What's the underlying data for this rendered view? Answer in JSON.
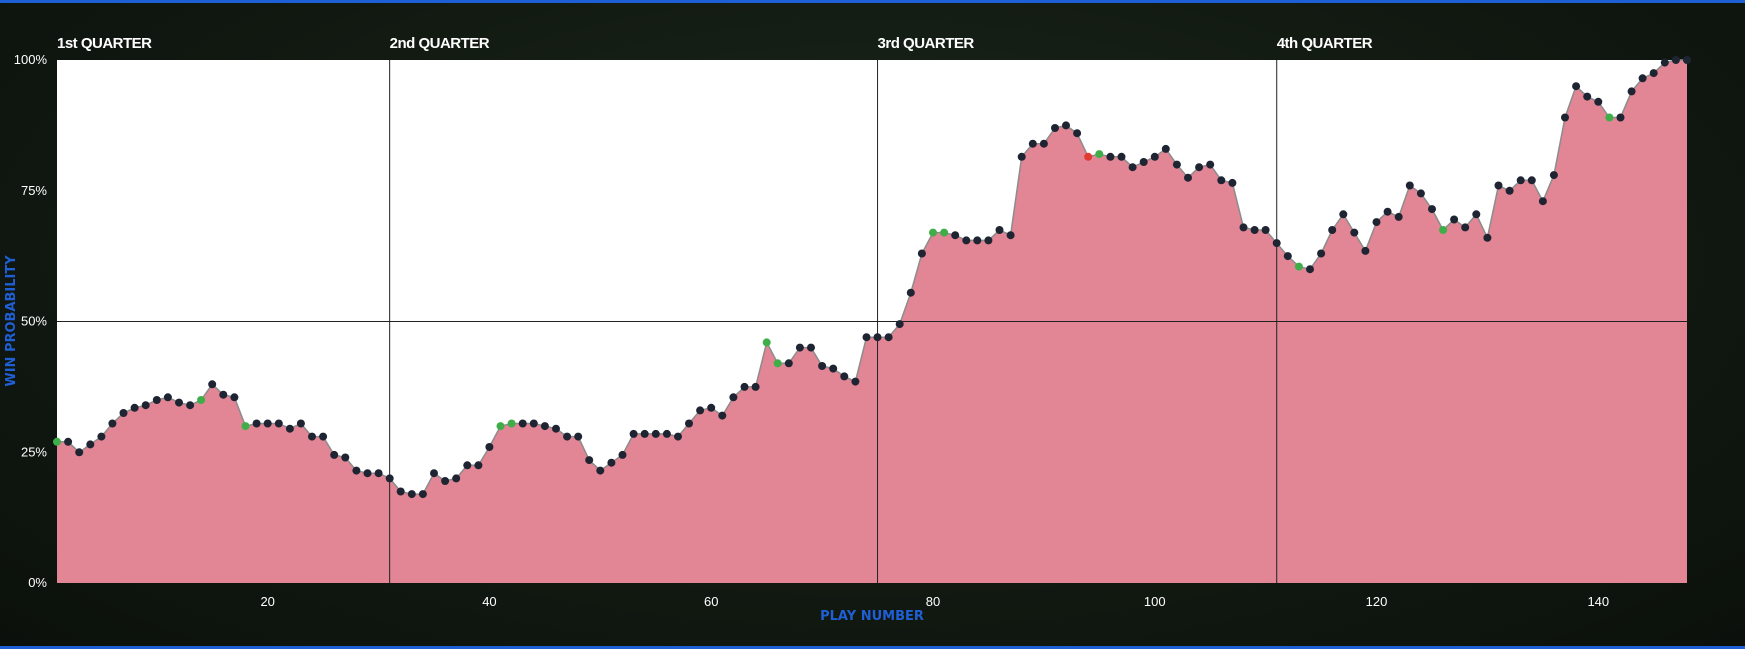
{
  "chart_data": {
    "type": "area",
    "xlabel": "PLAY NUMBER",
    "ylabel": "WIN PROBABILITY",
    "xlim": [
      1,
      148
    ],
    "ylim": [
      0,
      100
    ],
    "y_ticks": [
      {
        "value": 0,
        "label": "0%"
      },
      {
        "value": 25,
        "label": "25%"
      },
      {
        "value": 50,
        "label": "50%"
      },
      {
        "value": 75,
        "label": "75%"
      },
      {
        "value": 100,
        "label": "100%"
      }
    ],
    "x_ticks": [
      20,
      40,
      60,
      80,
      100,
      120,
      140
    ],
    "quarters": [
      {
        "label": "1st QUARTER",
        "start_play": 1
      },
      {
        "label": "2nd QUARTER",
        "start_play": 31
      },
      {
        "label": "3rd QUARTER",
        "start_play": 75
      },
      {
        "label": "4th QUARTER",
        "start_play": 111
      }
    ],
    "grid": "horizontal line at 50%, vertical lines at quarter boundaries",
    "colors": {
      "area_fill": "#e28595",
      "line": "#8c8c8c",
      "point_default": "#1f2433",
      "point_green": "#3fae49",
      "point_red": "#e03b30",
      "axis_title": "#1f5fd6"
    },
    "points": [
      {
        "x": 1,
        "y": 27,
        "c": "g"
      },
      {
        "x": 2,
        "y": 27
      },
      {
        "x": 3,
        "y": 25
      },
      {
        "x": 4,
        "y": 26.5
      },
      {
        "x": 5,
        "y": 28
      },
      {
        "x": 6,
        "y": 30.5
      },
      {
        "x": 7,
        "y": 32.5
      },
      {
        "x": 8,
        "y": 33.5
      },
      {
        "x": 9,
        "y": 34
      },
      {
        "x": 10,
        "y": 35
      },
      {
        "x": 11,
        "y": 35.5
      },
      {
        "x": 12,
        "y": 34.5
      },
      {
        "x": 13,
        "y": 34
      },
      {
        "x": 14,
        "y": 35,
        "c": "g"
      },
      {
        "x": 15,
        "y": 38
      },
      {
        "x": 16,
        "y": 36
      },
      {
        "x": 17,
        "y": 35.5
      },
      {
        "x": 18,
        "y": 30,
        "c": "g"
      },
      {
        "x": 19,
        "y": 30.5
      },
      {
        "x": 20,
        "y": 30.5
      },
      {
        "x": 21,
        "y": 30.5
      },
      {
        "x": 22,
        "y": 29.5
      },
      {
        "x": 23,
        "y": 30.5
      },
      {
        "x": 24,
        "y": 28
      },
      {
        "x": 25,
        "y": 28
      },
      {
        "x": 26,
        "y": 24.5
      },
      {
        "x": 27,
        "y": 24
      },
      {
        "x": 28,
        "y": 21.5
      },
      {
        "x": 29,
        "y": 21
      },
      {
        "x": 30,
        "y": 21
      },
      {
        "x": 31,
        "y": 20
      },
      {
        "x": 32,
        "y": 17.5
      },
      {
        "x": 33,
        "y": 17
      },
      {
        "x": 34,
        "y": 17
      },
      {
        "x": 35,
        "y": 21
      },
      {
        "x": 36,
        "y": 19.5
      },
      {
        "x": 37,
        "y": 20
      },
      {
        "x": 38,
        "y": 22.5
      },
      {
        "x": 39,
        "y": 22.5
      },
      {
        "x": 40,
        "y": 26
      },
      {
        "x": 41,
        "y": 30,
        "c": "g"
      },
      {
        "x": 42,
        "y": 30.5,
        "c": "g"
      },
      {
        "x": 43,
        "y": 30.5
      },
      {
        "x": 44,
        "y": 30.5
      },
      {
        "x": 45,
        "y": 30
      },
      {
        "x": 46,
        "y": 29.5
      },
      {
        "x": 47,
        "y": 28
      },
      {
        "x": 48,
        "y": 28
      },
      {
        "x": 49,
        "y": 23.5
      },
      {
        "x": 50,
        "y": 21.5
      },
      {
        "x": 51,
        "y": 23
      },
      {
        "x": 52,
        "y": 24.5
      },
      {
        "x": 53,
        "y": 28.5
      },
      {
        "x": 54,
        "y": 28.5
      },
      {
        "x": 55,
        "y": 28.5
      },
      {
        "x": 56,
        "y": 28.5
      },
      {
        "x": 57,
        "y": 28
      },
      {
        "x": 58,
        "y": 30.5
      },
      {
        "x": 59,
        "y": 33
      },
      {
        "x": 60,
        "y": 33.5
      },
      {
        "x": 61,
        "y": 32
      },
      {
        "x": 62,
        "y": 35.5
      },
      {
        "x": 63,
        "y": 37.5
      },
      {
        "x": 64,
        "y": 37.5
      },
      {
        "x": 65,
        "y": 46,
        "c": "g"
      },
      {
        "x": 66,
        "y": 42,
        "c": "g"
      },
      {
        "x": 67,
        "y": 42
      },
      {
        "x": 68,
        "y": 45
      },
      {
        "x": 69,
        "y": 45
      },
      {
        "x": 70,
        "y": 41.5
      },
      {
        "x": 71,
        "y": 41
      },
      {
        "x": 72,
        "y": 39.5
      },
      {
        "x": 73,
        "y": 38.5
      },
      {
        "x": 74,
        "y": 47
      },
      {
        "x": 75,
        "y": 47
      },
      {
        "x": 76,
        "y": 47
      },
      {
        "x": 77,
        "y": 49.5
      },
      {
        "x": 78,
        "y": 55.5
      },
      {
        "x": 79,
        "y": 63
      },
      {
        "x": 80,
        "y": 67,
        "c": "g"
      },
      {
        "x": 81,
        "y": 67,
        "c": "g"
      },
      {
        "x": 82,
        "y": 66.5
      },
      {
        "x": 83,
        "y": 65.5
      },
      {
        "x": 84,
        "y": 65.5
      },
      {
        "x": 85,
        "y": 65.5
      },
      {
        "x": 86,
        "y": 67.5
      },
      {
        "x": 87,
        "y": 66.5
      },
      {
        "x": 88,
        "y": 81.5
      },
      {
        "x": 89,
        "y": 84
      },
      {
        "x": 90,
        "y": 84
      },
      {
        "x": 91,
        "y": 87
      },
      {
        "x": 92,
        "y": 87.5
      },
      {
        "x": 93,
        "y": 86
      },
      {
        "x": 94,
        "y": 81.5,
        "c": "r"
      },
      {
        "x": 95,
        "y": 82,
        "c": "g"
      },
      {
        "x": 96,
        "y": 81.5
      },
      {
        "x": 97,
        "y": 81.5
      },
      {
        "x": 98,
        "y": 79.5
      },
      {
        "x": 99,
        "y": 80.5
      },
      {
        "x": 100,
        "y": 81.5
      },
      {
        "x": 101,
        "y": 83
      },
      {
        "x": 102,
        "y": 80
      },
      {
        "x": 103,
        "y": 77.5
      },
      {
        "x": 104,
        "y": 79.5
      },
      {
        "x": 105,
        "y": 80
      },
      {
        "x": 106,
        "y": 77
      },
      {
        "x": 107,
        "y": 76.5
      },
      {
        "x": 108,
        "y": 68
      },
      {
        "x": 109,
        "y": 67.5
      },
      {
        "x": 110,
        "y": 67.5
      },
      {
        "x": 111,
        "y": 65
      },
      {
        "x": 112,
        "y": 62.5
      },
      {
        "x": 113,
        "y": 60.5,
        "c": "g"
      },
      {
        "x": 114,
        "y": 60
      },
      {
        "x": 115,
        "y": 63
      },
      {
        "x": 116,
        "y": 67.5
      },
      {
        "x": 117,
        "y": 70.5
      },
      {
        "x": 118,
        "y": 67
      },
      {
        "x": 119,
        "y": 63.5
      },
      {
        "x": 120,
        "y": 69
      },
      {
        "x": 121,
        "y": 71
      },
      {
        "x": 122,
        "y": 70
      },
      {
        "x": 123,
        "y": 76
      },
      {
        "x": 124,
        "y": 74.5
      },
      {
        "x": 125,
        "y": 71.5
      },
      {
        "x": 126,
        "y": 67.5,
        "c": "g"
      },
      {
        "x": 127,
        "y": 69.5
      },
      {
        "x": 128,
        "y": 68
      },
      {
        "x": 129,
        "y": 70.5
      },
      {
        "x": 130,
        "y": 66
      },
      {
        "x": 131,
        "y": 76
      },
      {
        "x": 132,
        "y": 75
      },
      {
        "x": 133,
        "y": 77
      },
      {
        "x": 134,
        "y": 77
      },
      {
        "x": 135,
        "y": 73
      },
      {
        "x": 136,
        "y": 78
      },
      {
        "x": 137,
        "y": 89
      },
      {
        "x": 138,
        "y": 95
      },
      {
        "x": 139,
        "y": 93
      },
      {
        "x": 140,
        "y": 92
      },
      {
        "x": 141,
        "y": 89,
        "c": "g"
      },
      {
        "x": 142,
        "y": 89
      },
      {
        "x": 143,
        "y": 94
      },
      {
        "x": 144,
        "y": 96.5
      },
      {
        "x": 145,
        "y": 97.5
      },
      {
        "x": 146,
        "y": 99.5
      },
      {
        "x": 147,
        "y": 100
      },
      {
        "x": 148,
        "y": 100
      }
    ]
  }
}
